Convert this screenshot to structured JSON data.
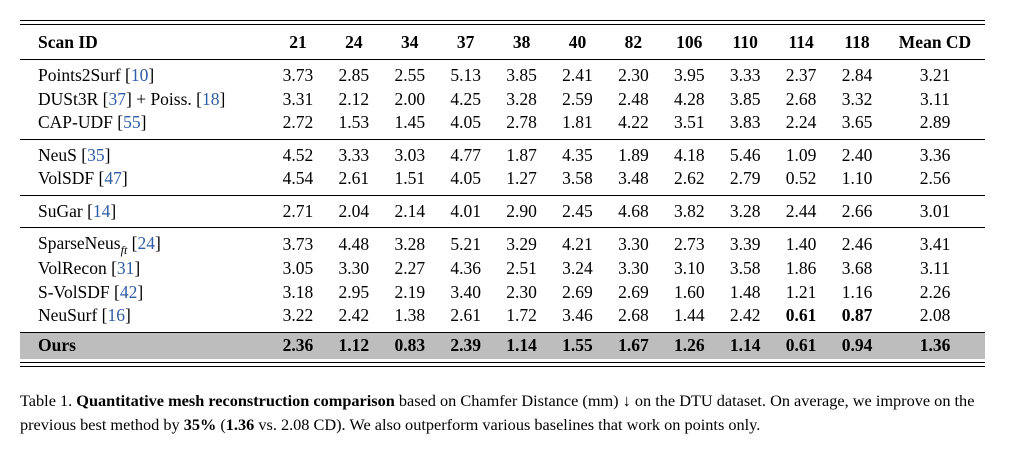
{
  "table": {
    "header": {
      "label": "Scan ID",
      "scans": [
        "21",
        "24",
        "34",
        "37",
        "38",
        "40",
        "82",
        "106",
        "110",
        "114",
        "118"
      ],
      "mean": "Mean CD"
    },
    "groups": [
      {
        "rows": [
          {
            "method": "Points2Surf",
            "cite": "10",
            "values": [
              "3.73",
              "2.85",
              "2.55",
              "5.13",
              "3.85",
              "2.41",
              "2.30",
              "3.95",
              "3.33",
              "2.37",
              "2.84"
            ],
            "mean": "3.21"
          },
          {
            "method": "DUSt3R",
            "cite": "37",
            "extra": " + Poiss. ",
            "cite2": "18",
            "values": [
              "3.31",
              "2.12",
              "2.00",
              "4.25",
              "3.28",
              "2.59",
              "2.48",
              "4.28",
              "3.85",
              "2.68",
              "3.32"
            ],
            "mean": "3.11"
          },
          {
            "method": "CAP-UDF",
            "cite": "55",
            "values": [
              "2.72",
              "1.53",
              "1.45",
              "4.05",
              "2.78",
              "1.81",
              "4.22",
              "3.51",
              "3.83",
              "2.24",
              "3.65"
            ],
            "mean": "2.89"
          }
        ]
      },
      {
        "rows": [
          {
            "method": "NeuS",
            "cite": "35",
            "values": [
              "4.52",
              "3.33",
              "3.03",
              "4.77",
              "1.87",
              "4.35",
              "1.89",
              "4.18",
              "5.46",
              "1.09",
              "2.40"
            ],
            "mean": "3.36"
          },
          {
            "method": "VolSDF",
            "cite": "47",
            "values": [
              "4.54",
              "2.61",
              "1.51",
              "4.05",
              "1.27",
              "3.58",
              "3.48",
              "2.62",
              "2.79",
              "0.52",
              "1.10"
            ],
            "mean": "2.56"
          }
        ]
      },
      {
        "rows": [
          {
            "method": "SuGar",
            "cite": "14",
            "values": [
              "2.71",
              "2.04",
              "2.14",
              "4.01",
              "2.90",
              "2.45",
              "4.68",
              "3.82",
              "3.28",
              "2.44",
              "2.66"
            ],
            "mean": "3.01"
          }
        ]
      },
      {
        "rows": [
          {
            "method": "SparseNeus",
            "sub": "ft",
            "cite": "24",
            "values": [
              "3.73",
              "4.48",
              "3.28",
              "5.21",
              "3.29",
              "4.21",
              "3.30",
              "2.73",
              "3.39",
              "1.40",
              "2.46"
            ],
            "mean": "3.41"
          },
          {
            "method": "VolRecon",
            "cite": "31",
            "values": [
              "3.05",
              "3.30",
              "2.27",
              "4.36",
              "2.51",
              "3.24",
              "3.30",
              "3.10",
              "3.58",
              "1.86",
              "3.68"
            ],
            "mean": "3.11"
          },
          {
            "method": "S-VolSDF",
            "cite": "42",
            "values": [
              "3.18",
              "2.95",
              "2.19",
              "3.40",
              "2.30",
              "2.69",
              "2.69",
              "1.60",
              "1.48",
              "1.21",
              "1.16"
            ],
            "mean": "2.26"
          },
          {
            "method": "NeuSurf",
            "cite": "16",
            "values": [
              "3.22",
              "2.42",
              "1.38",
              "2.61",
              "1.72",
              "3.46",
              "2.68",
              "1.44",
              "2.42",
              "0.61",
              "0.87"
            ],
            "mean": "2.08",
            "bold_idx": [
              9,
              10
            ]
          }
        ]
      }
    ],
    "ours": {
      "method": "Ours",
      "values": [
        "2.36",
        "1.12",
        "0.83",
        "2.39",
        "1.14",
        "1.55",
        "1.67",
        "1.26",
        "1.14",
        "0.61",
        "0.94"
      ],
      "mean": "1.36",
      "normal_idx": [
        10
      ]
    }
  },
  "caption": {
    "prefix": "Table 1. ",
    "bold_title": "Quantitative mesh reconstruction comparison",
    "text1": " based on Chamfer Distance (mm) ↓ on the DTU dataset. On average, we improve on the previous best method by ",
    "bold_pct": "35%",
    "text2": " (",
    "bold_val": "1.36",
    "text3": " vs. 2.08 CD). We also outperform various baselines that work on points only."
  }
}
